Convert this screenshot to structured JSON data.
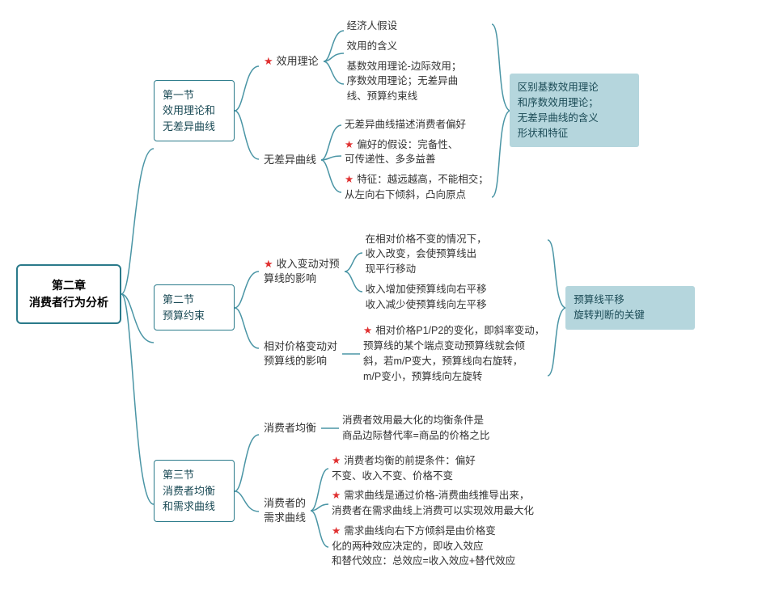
{
  "root": {
    "line1": "第二章",
    "line2": "消费者行为分析"
  },
  "sections": [
    {
      "title_lines": [
        "第一节",
        "效用理论和",
        "无差异曲线"
      ],
      "subs": [
        {
          "label": "效用理论",
          "star": true,
          "leaves": [
            {
              "text": "经济人假设",
              "star": false
            },
            {
              "text": "效用的含义",
              "star": false
            },
            {
              "text": "基数效用理论-边际效用；\n序数效用理论；无差异曲\n线、预算约束线",
              "star": false
            }
          ]
        },
        {
          "label": "无差异曲线",
          "star": false,
          "leaves": [
            {
              "text": "无差异曲线描述消费者偏好",
              "star": false
            },
            {
              "text": "偏好的假设：完备性、\n可传递性、多多益善",
              "star": true
            },
            {
              "text": "特征：越远越高，不能相交；\n从左向右下倾斜，凸向原点",
              "star": true
            }
          ]
        }
      ],
      "annotation": "区别基数效用理论\n和序数效用理论；\n无差异曲线的含义\n形状和特征"
    },
    {
      "title_lines": [
        "第二节",
        "预算约束"
      ],
      "subs": [
        {
          "label": "收入变动对预\n算线的影响",
          "star": true,
          "leaves": [
            {
              "text": "在相对价格不变的情况下，\n收入改变，会使预算线出\n现平行移动",
              "star": false
            },
            {
              "text": "收入增加使预算线向右平移\n收入减少使预算线向左平移",
              "star": false
            }
          ]
        },
        {
          "label": "相对价格变动对\n预算线的影响",
          "star": false,
          "leaves": [
            {
              "text": "相对价格P1/P2的变化，即斜率变动，\n预算线的某个端点变动预算线就会倾\n斜，若m/P变大，预算线向右旋转，\nm/P变小，预算线向左旋转",
              "star": true
            }
          ]
        }
      ],
      "annotation": "预算线平移\n旋转判断的关键"
    },
    {
      "title_lines": [
        "第三节",
        "消费者均衡",
        "和需求曲线"
      ],
      "subs": [
        {
          "label": "消费者均衡",
          "star": false,
          "leaves": [
            {
              "text": "消费者效用最大化的均衡条件是\n商品边际替代率=商品的价格之比",
              "star": false
            }
          ]
        },
        {
          "label": "消费者的\n需求曲线",
          "star": false,
          "leaves": [
            {
              "text": "消费者均衡的前提条件：偏好\n不变、收入不变、价格不变",
              "star": true
            },
            {
              "text": "需求曲线是通过价格-消费曲线推导出来，\n消费者在需求曲线上消费可以实现效用最大化",
              "star": true
            },
            {
              "text": "需求曲线向右下方倾斜是由价格变\n化的两种效应决定的，即收入效应\n和替代效应：总效应=收入效应+替代效应",
              "star": true
            }
          ]
        }
      ],
      "annotation": null
    }
  ],
  "colors": {
    "line": "#4a95a5",
    "border": "#2a7a8a",
    "star": "#e03030",
    "annot_bg": "#b5d6dd"
  }
}
